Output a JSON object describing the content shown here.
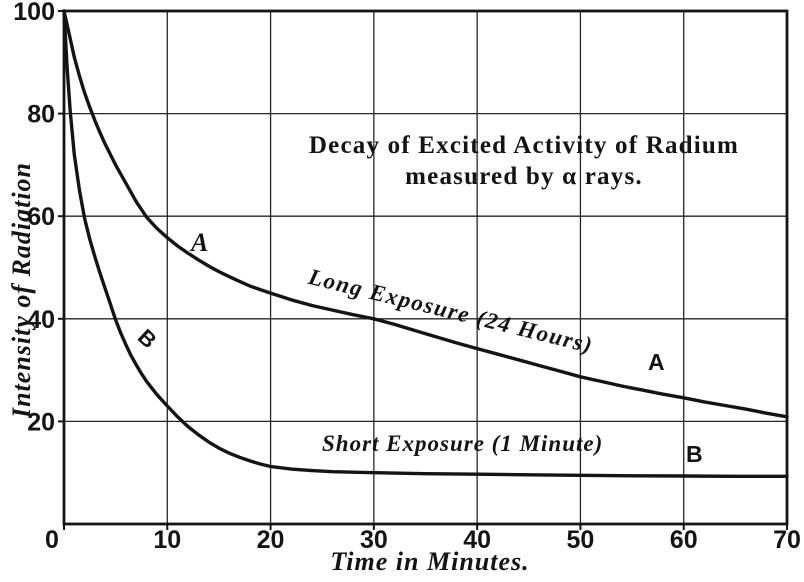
{
  "figure": {
    "title_line1": "Decay of Excited Activity of Radium",
    "title_line2": "measured by α rays.",
    "y_axis_title": "Intensity of Radiation",
    "x_axis_title": "Time in Minutes.",
    "curve_a_label": "Long Exposure (24 Hours)",
    "curve_b_label": "Short Exposure (1 Minute)",
    "marker_a": "A",
    "marker_b": "B"
  },
  "colors": {
    "ink": "#141414",
    "paper": "#ffffff"
  },
  "chart_data": {
    "type": "line",
    "title": "Decay of Excited Activity of Radium measured by α rays.",
    "xlabel": "Time in Minutes.",
    "ylabel": "Intensity of Radiation",
    "xlim": [
      0,
      70
    ],
    "ylim": [
      0,
      100
    ],
    "x_ticks": [
      0,
      10,
      20,
      30,
      40,
      50,
      60,
      70
    ],
    "y_ticks": [
      0,
      20,
      40,
      60,
      80,
      100
    ],
    "grid": true,
    "legend_position": "labels-on-curves",
    "series": [
      {
        "name": "A — Long Exposure (24 Hours)",
        "points": [
          [
            0,
            100
          ],
          [
            0.5,
            95.5
          ],
          [
            1,
            91
          ],
          [
            1.5,
            87.3
          ],
          [
            2,
            84
          ],
          [
            2.5,
            81.2
          ],
          [
            3,
            78.6
          ],
          [
            3.5,
            76.2
          ],
          [
            4,
            74
          ],
          [
            5,
            70
          ],
          [
            6,
            66.4
          ],
          [
            7,
            62.8
          ],
          [
            8,
            59.8
          ],
          [
            9,
            57.6
          ],
          [
            10,
            55.8
          ],
          [
            11,
            54.2
          ],
          [
            12,
            52.8
          ],
          [
            13,
            51.5
          ],
          [
            14,
            50.3
          ],
          [
            15,
            49.2
          ],
          [
            16,
            48.2
          ],
          [
            17,
            47.3
          ],
          [
            18,
            46.4
          ],
          [
            19,
            45.7
          ],
          [
            20,
            45
          ],
          [
            22,
            43.7
          ],
          [
            24,
            42.6
          ],
          [
            26,
            41.7
          ],
          [
            28,
            40.8
          ],
          [
            30,
            40
          ],
          [
            32,
            38.9
          ],
          [
            34,
            37.7
          ],
          [
            36,
            36.5
          ],
          [
            38,
            35.3
          ],
          [
            40,
            34.2
          ],
          [
            42,
            33.1
          ],
          [
            44,
            32
          ],
          [
            46,
            30.9
          ],
          [
            48,
            29.8
          ],
          [
            50,
            28.7
          ],
          [
            52,
            27.8
          ],
          [
            54,
            26.9
          ],
          [
            56,
            26.1
          ],
          [
            58,
            25.3
          ],
          [
            60,
            24.6
          ],
          [
            62,
            23.8
          ],
          [
            64,
            23.1
          ],
          [
            66,
            22.4
          ],
          [
            68,
            21.6
          ],
          [
            70,
            20.9
          ]
        ]
      },
      {
        "name": "B — Short Exposure (1 Minute)",
        "points": [
          [
            0,
            100
          ],
          [
            0.3,
            89
          ],
          [
            0.6,
            80.5
          ],
          [
            1,
            72
          ],
          [
            1.5,
            65
          ],
          [
            2,
            59.5
          ],
          [
            2.5,
            55.5
          ],
          [
            3,
            52
          ],
          [
            3.5,
            48.8
          ],
          [
            4,
            45.8
          ],
          [
            4.5,
            42.8
          ],
          [
            5,
            39.8
          ],
          [
            5.5,
            37.2
          ],
          [
            6,
            34.9
          ],
          [
            6.5,
            32.8
          ],
          [
            7,
            31
          ],
          [
            7.5,
            29.3
          ],
          [
            8,
            27.8
          ],
          [
            9,
            25.2
          ],
          [
            10,
            23
          ],
          [
            11,
            20.9
          ],
          [
            12,
            19
          ],
          [
            13,
            17.4
          ],
          [
            14,
            16
          ],
          [
            15,
            14.8
          ],
          [
            16,
            13.8
          ],
          [
            17,
            13
          ],
          [
            18,
            12.3
          ],
          [
            19,
            11.7
          ],
          [
            20,
            11.2
          ],
          [
            22,
            10.7
          ],
          [
            24,
            10.4
          ],
          [
            26,
            10.2
          ],
          [
            28,
            10.1
          ],
          [
            30,
            10
          ],
          [
            35,
            9.8
          ],
          [
            40,
            9.7
          ],
          [
            45,
            9.6
          ],
          [
            50,
            9.5
          ],
          [
            55,
            9.4
          ],
          [
            60,
            9.35
          ],
          [
            65,
            9.3
          ],
          [
            70,
            9.3
          ]
        ]
      }
    ]
  }
}
